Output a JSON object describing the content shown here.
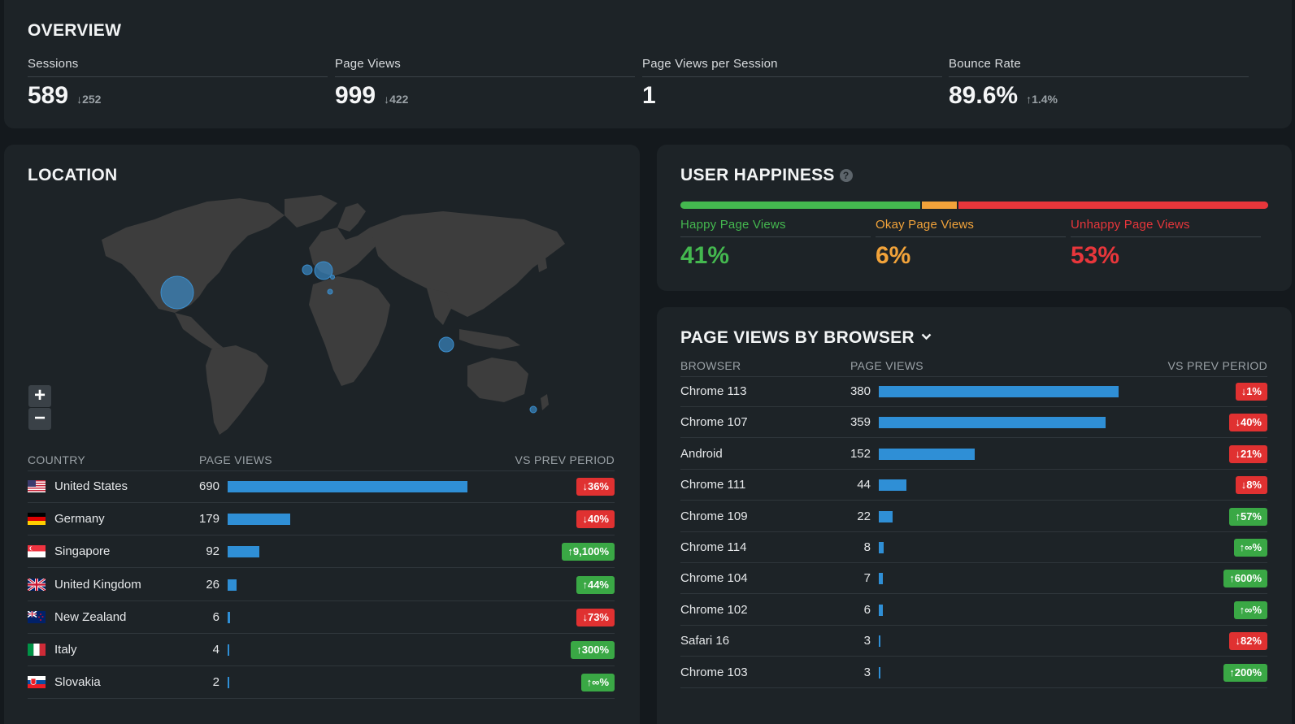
{
  "overview": {
    "title": "OVERVIEW",
    "metrics": [
      {
        "label": "Sessions",
        "value": "589",
        "delta": "252",
        "direction": "down"
      },
      {
        "label": "Page Views",
        "value": "999",
        "delta": "422",
        "direction": "down"
      },
      {
        "label": "Page Views per Session",
        "value": "1",
        "delta": "",
        "direction": "none"
      },
      {
        "label": "Bounce Rate",
        "value": "89.6%",
        "delta": "1.4%",
        "direction": "up"
      }
    ]
  },
  "location": {
    "title": "LOCATION",
    "zoom_in": "+",
    "zoom_out": "−",
    "columns": {
      "country": "COUNTRY",
      "page_views": "PAGE VIEWS",
      "vs_prev": "VS PREV PERIOD"
    },
    "rows": [
      {
        "country": "United States",
        "views": 690,
        "change": "36%",
        "direction": "down",
        "flag": "us"
      },
      {
        "country": "Germany",
        "views": 179,
        "change": "40%",
        "direction": "down",
        "flag": "de"
      },
      {
        "country": "Singapore",
        "views": 92,
        "change": "9,100%",
        "direction": "up",
        "flag": "sg"
      },
      {
        "country": "United Kingdom",
        "views": 26,
        "change": "44%",
        "direction": "up",
        "flag": "gb"
      },
      {
        "country": "New Zealand",
        "views": 6,
        "change": "73%",
        "direction": "down",
        "flag": "nz"
      },
      {
        "country": "Italy",
        "views": 4,
        "change": "300%",
        "direction": "up",
        "flag": "it"
      },
      {
        "country": "Slovakia",
        "views": 2,
        "change": "∞%",
        "direction": "up",
        "flag": "sk"
      }
    ]
  },
  "happiness": {
    "title": "USER HAPPINESS",
    "help_icon": "?",
    "segments": [
      {
        "label": "Happy Page Views",
        "value": "41%",
        "percent": 41,
        "color": "#44b84f"
      },
      {
        "label": "Okay Page Views",
        "value": "6%",
        "percent": 6,
        "color": "#f2a33a"
      },
      {
        "label": "Unhappy Page Views",
        "value": "53%",
        "percent": 53,
        "color": "#e8363b"
      }
    ]
  },
  "browser": {
    "title": "PAGE VIEWS BY BROWSER",
    "columns": {
      "browser": "BROWSER",
      "page_views": "PAGE VIEWS",
      "vs_prev": "VS PREV PERIOD"
    },
    "rows": [
      {
        "browser": "Chrome 113",
        "views": 380,
        "change": "1%",
        "direction": "down"
      },
      {
        "browser": "Chrome 107",
        "views": 359,
        "change": "40%",
        "direction": "down"
      },
      {
        "browser": "Android",
        "views": 152,
        "change": "21%",
        "direction": "down"
      },
      {
        "browser": "Chrome 111",
        "views": 44,
        "change": "8%",
        "direction": "down"
      },
      {
        "browser": "Chrome 109",
        "views": 22,
        "change": "57%",
        "direction": "up"
      },
      {
        "browser": "Chrome 114",
        "views": 8,
        "change": "∞%",
        "direction": "up"
      },
      {
        "browser": "Chrome 104",
        "views": 7,
        "change": "600%",
        "direction": "up"
      },
      {
        "browser": "Chrome 102",
        "views": 6,
        "change": "∞%",
        "direction": "up"
      },
      {
        "browser": "Safari 16",
        "views": 3,
        "change": "82%",
        "direction": "down"
      },
      {
        "browser": "Chrome 103",
        "views": 3,
        "change": "200%",
        "direction": "up"
      }
    ]
  },
  "colors": {
    "bar": "#2f8fd6",
    "down": "#e03131",
    "up": "#3aa845",
    "map_land": "#3d3d3d",
    "map_marker": "#3b8fcf"
  }
}
